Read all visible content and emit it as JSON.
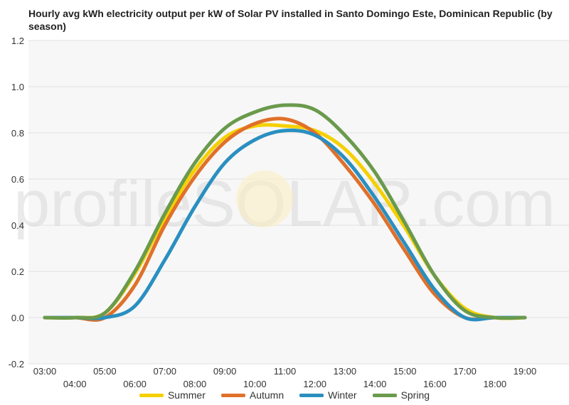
{
  "chart_data": {
    "type": "line",
    "title": "Hourly avg kWh electricity output per kW of Solar PV installed in Santo Domingo Este, Dominican Republic (by season)",
    "xlabel": "",
    "ylabel": "",
    "ylim": [
      -0.2,
      1.2
    ],
    "y_ticks": [
      "1.2",
      "1.0",
      "0.8",
      "0.6",
      "0.4",
      "0.2",
      "0.0",
      "-0.2"
    ],
    "y_tick_values": [
      1.2,
      1.0,
      0.8,
      0.6,
      0.4,
      0.2,
      0.0,
      -0.2
    ],
    "categories": [
      "03:00",
      "04:00",
      "05:00",
      "06:00",
      "07:00",
      "08:00",
      "09:00",
      "10:00",
      "11:00",
      "12:00",
      "13:00",
      "14:00",
      "15:00",
      "16:00",
      "17:00",
      "18:00",
      "19:00"
    ],
    "grid": true,
    "legend_position": "bottom",
    "watermark": "profileSOLAR.com",
    "series": [
      {
        "name": "Summer",
        "color": "#f5d000",
        "values": [
          0.0,
          0.0,
          0.02,
          0.19,
          0.43,
          0.64,
          0.78,
          0.83,
          0.83,
          0.81,
          0.73,
          0.58,
          0.39,
          0.18,
          0.04,
          0.0,
          0.0
        ]
      },
      {
        "name": "Autumn",
        "color": "#e0702a",
        "values": [
          0.0,
          0.0,
          0.0,
          0.14,
          0.4,
          0.61,
          0.76,
          0.84,
          0.86,
          0.8,
          0.66,
          0.49,
          0.29,
          0.1,
          0.0,
          0.0,
          0.0
        ]
      },
      {
        "name": "Winter",
        "color": "#2a8fc0",
        "values": [
          0.0,
          0.0,
          0.0,
          0.05,
          0.25,
          0.48,
          0.67,
          0.77,
          0.81,
          0.79,
          0.69,
          0.52,
          0.32,
          0.12,
          0.0,
          0.0,
          0.0
        ]
      },
      {
        "name": "Spring",
        "color": "#6a9a4c",
        "values": [
          0.0,
          0.0,
          0.02,
          0.2,
          0.45,
          0.67,
          0.82,
          0.89,
          0.92,
          0.9,
          0.79,
          0.63,
          0.41,
          0.18,
          0.03,
          0.0,
          0.0
        ]
      }
    ]
  }
}
